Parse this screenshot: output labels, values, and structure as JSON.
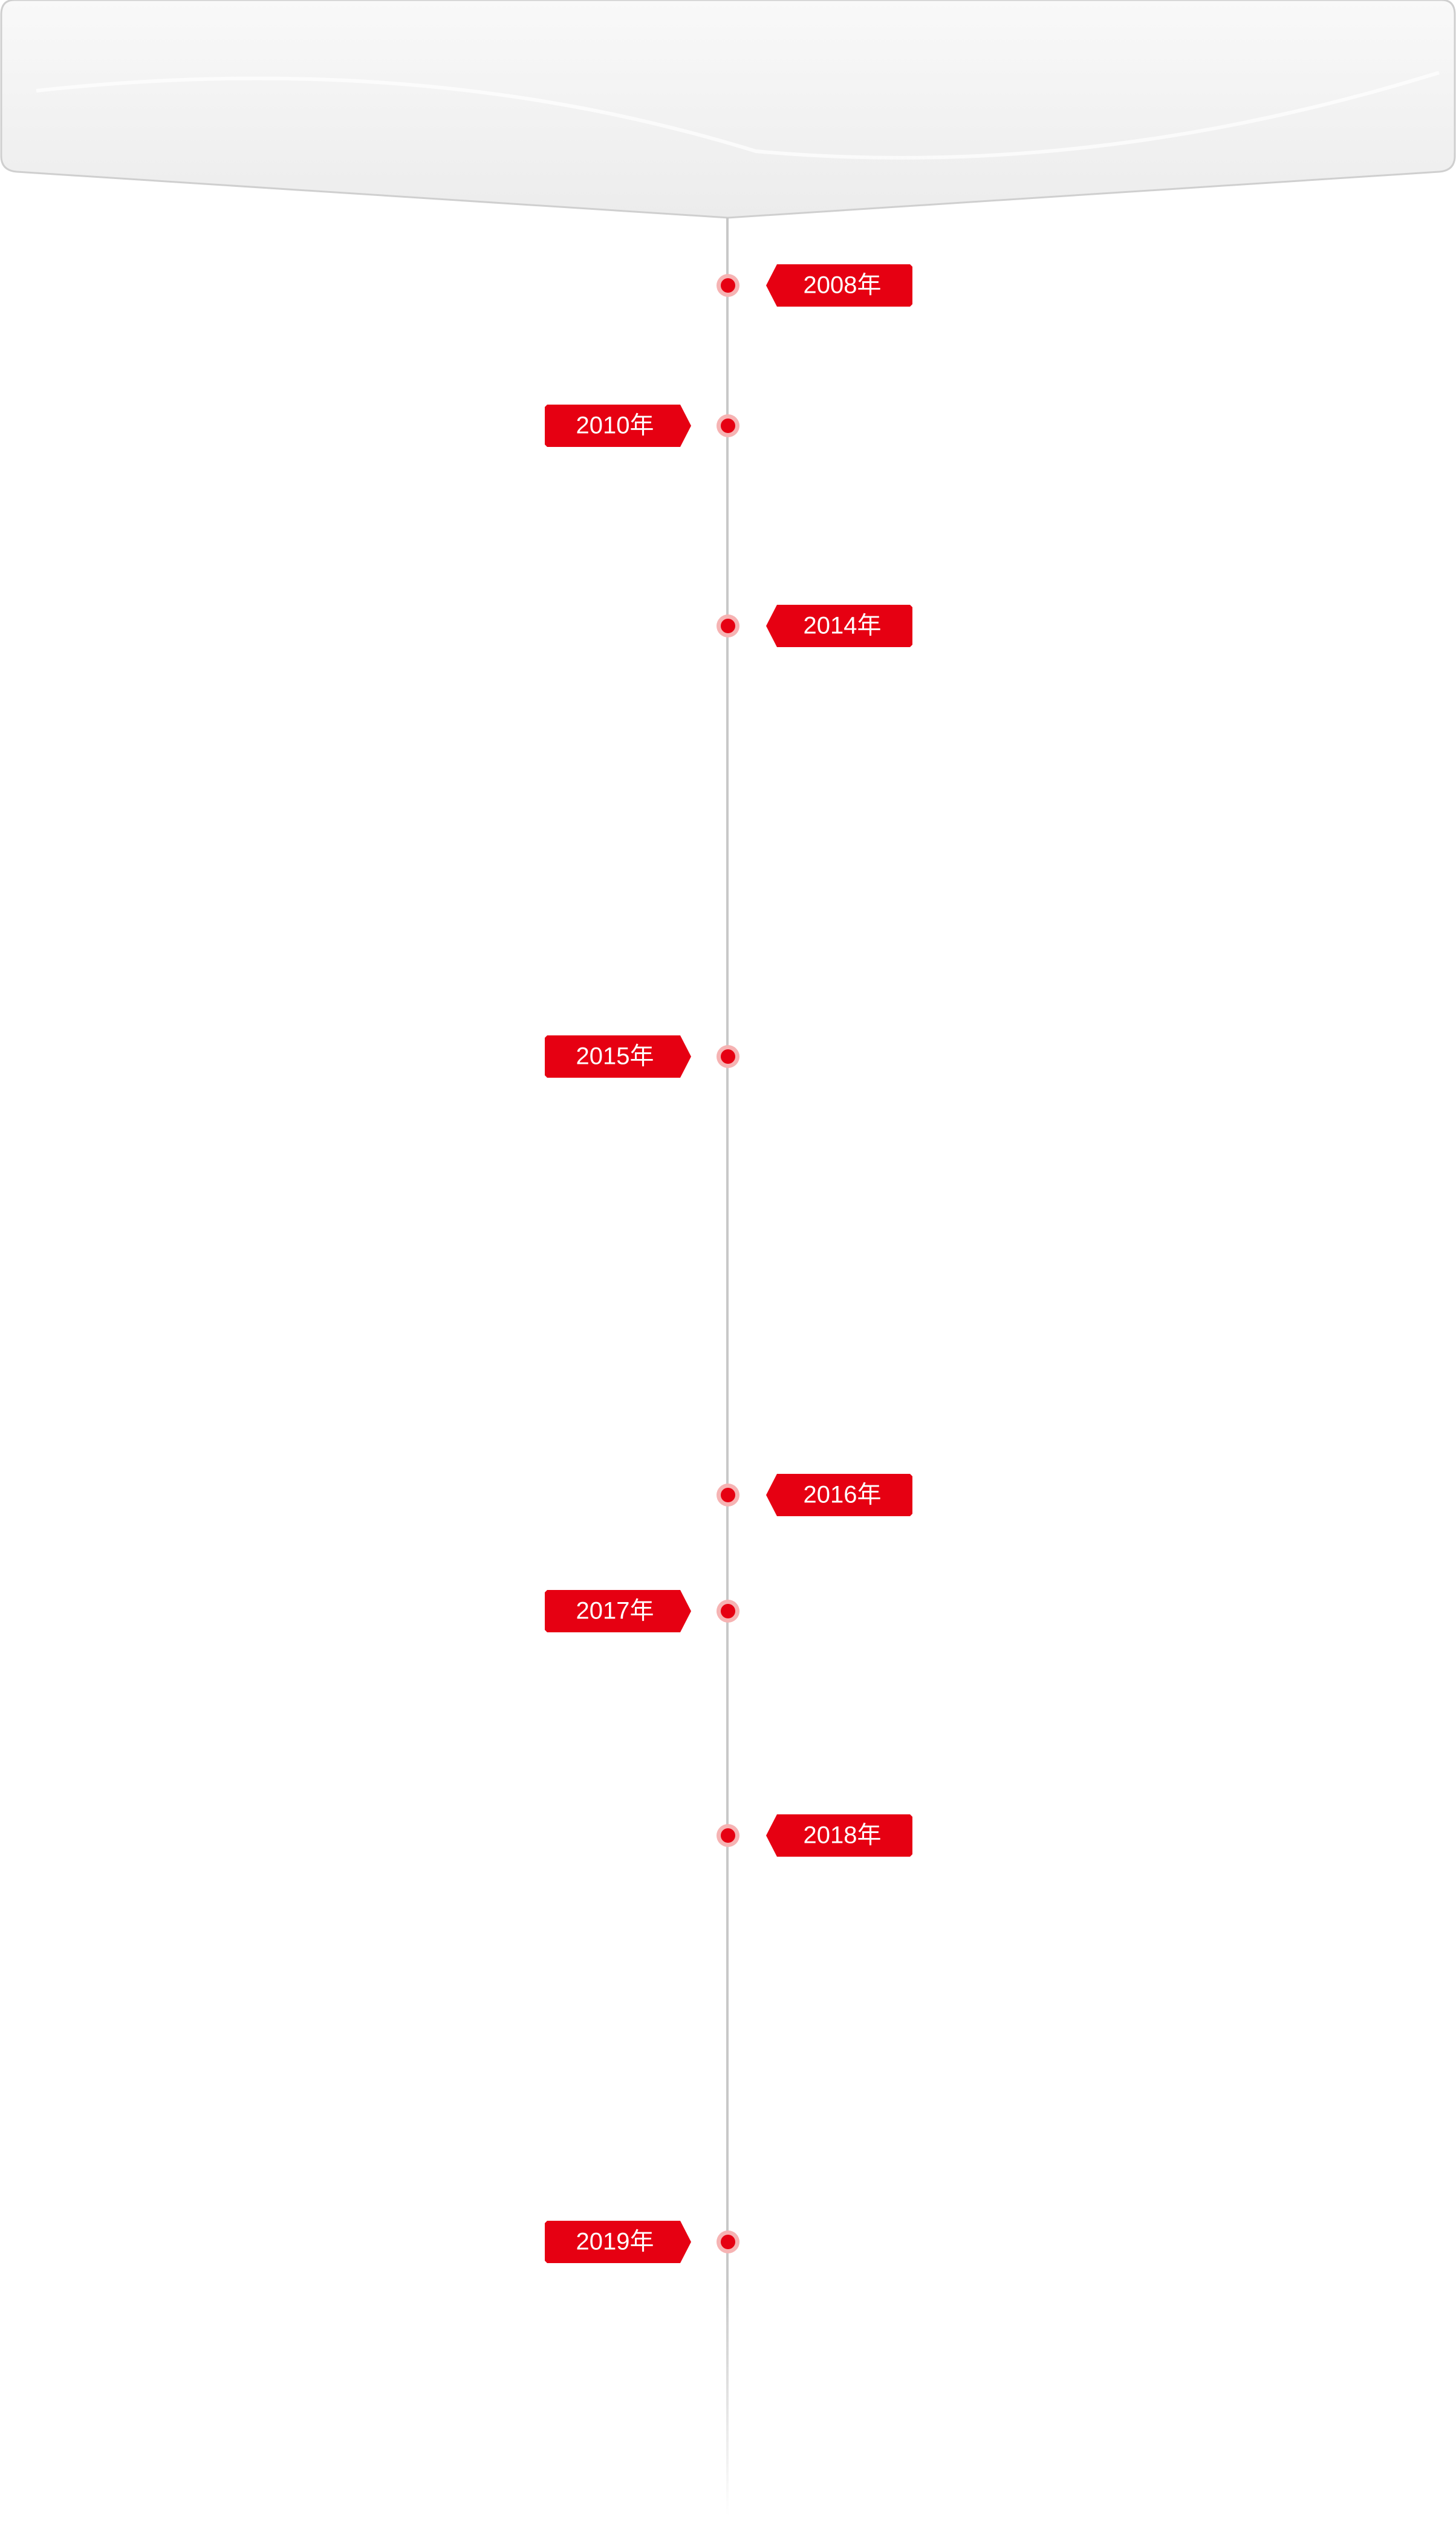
{
  "timeline": {
    "items": [
      {
        "label": "2008年"
      },
      {
        "label": "2010年"
      },
      {
        "label": "2014年"
      },
      {
        "label": "2015年"
      },
      {
        "label": "2016年"
      },
      {
        "label": "2017年"
      },
      {
        "label": "2018年"
      },
      {
        "label": "2019年"
      }
    ]
  }
}
